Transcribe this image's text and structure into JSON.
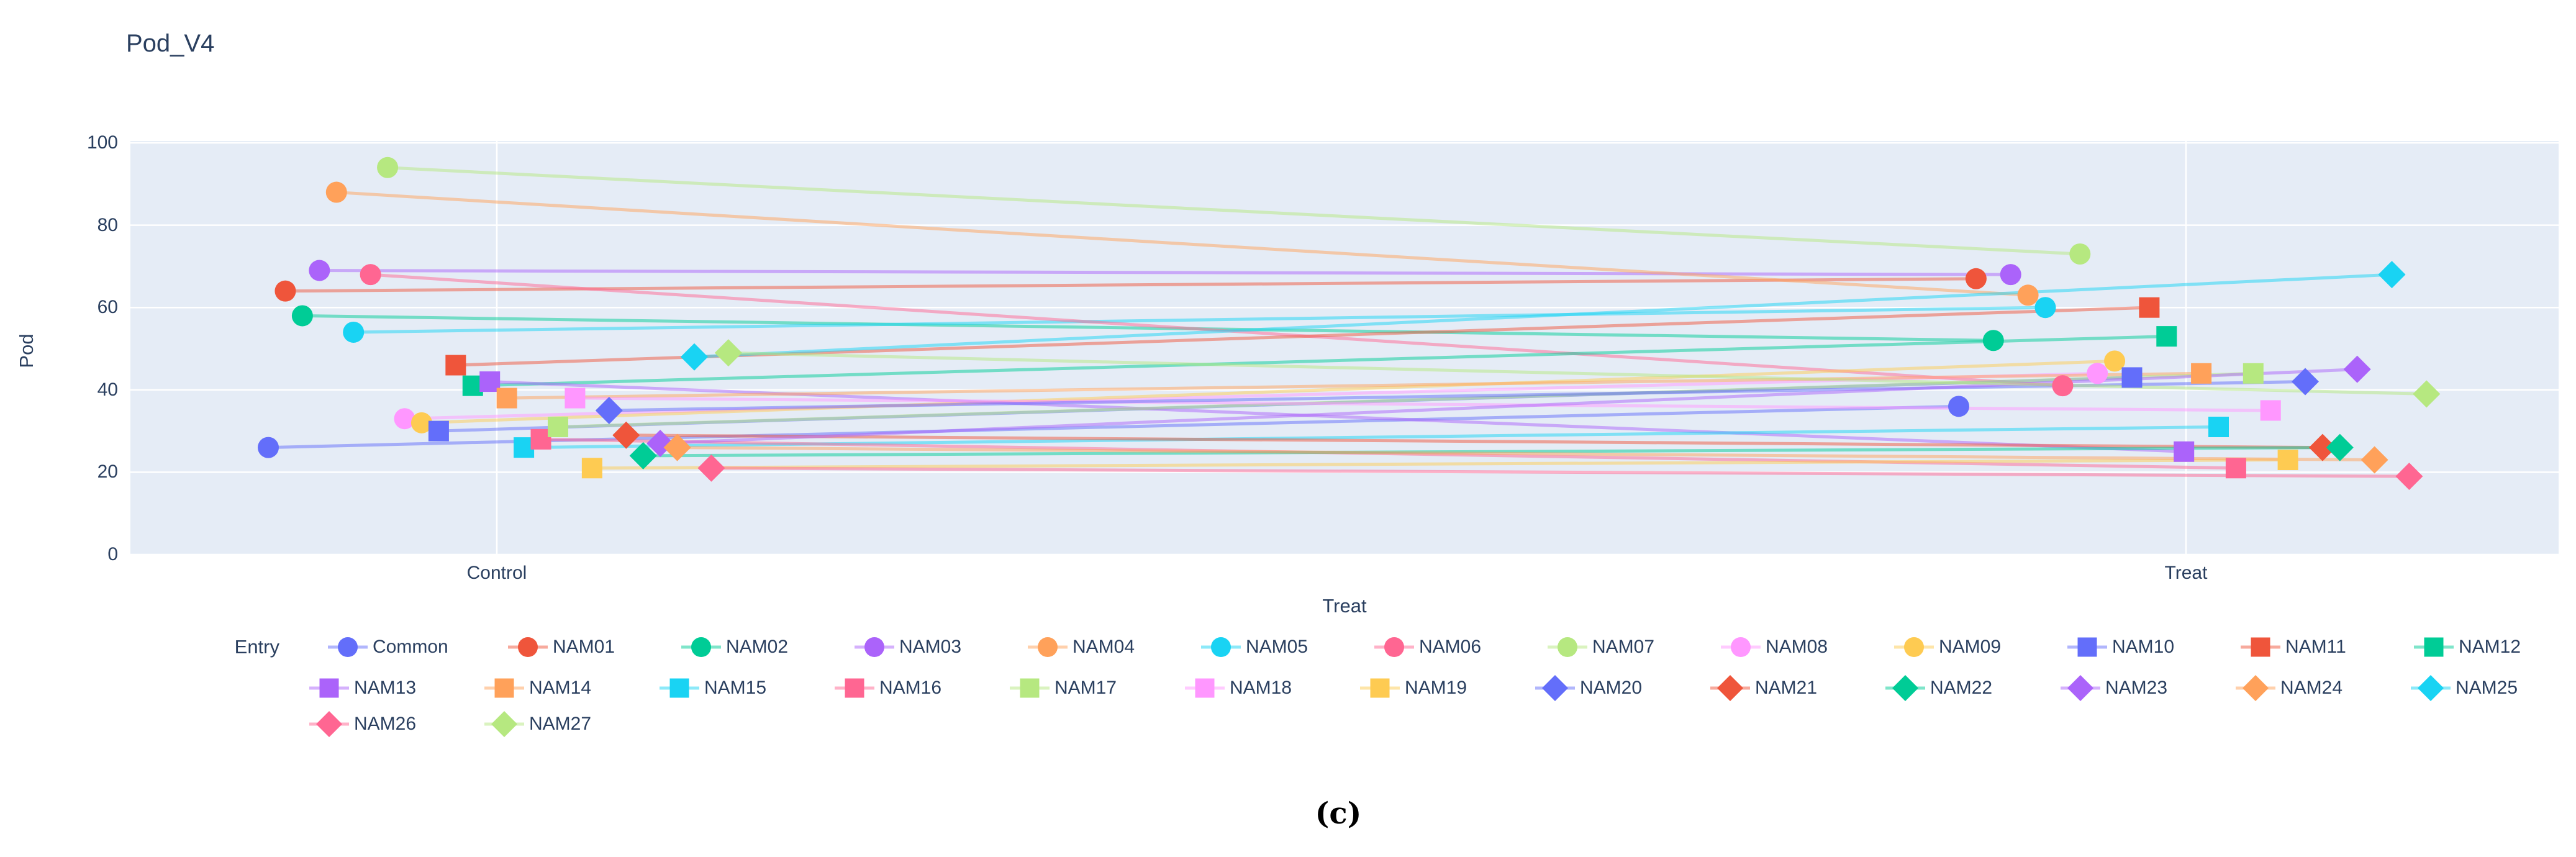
{
  "title": "Pod_V4",
  "caption": "(c)",
  "y_axis": {
    "title": "Pod",
    "ticks": [
      0,
      20,
      40,
      60,
      80,
      100
    ]
  },
  "x_axis": {
    "title": "Treat",
    "categories": [
      "Control",
      "Treat"
    ]
  },
  "legend": {
    "title": "Entry"
  },
  "colors": {
    "plot_background": "#E5ECF6",
    "gridline": "#FFFFFF",
    "text": "#2A3F5F",
    "caption_text": "#000000",
    "palette": [
      "#636EFA",
      "#EF553B",
      "#00CC96",
      "#AB63FA",
      "#FFA15A",
      "#19D3F3",
      "#FF6692",
      "#B6E880",
      "#FF97FF",
      "#FECB52"
    ]
  },
  "chart_data": {
    "type": "line",
    "subtype": "paired-dot-slope-chart",
    "title": "Pod_V4",
    "xlabel": "Treat",
    "ylabel": "Pod",
    "ylim": [
      0,
      100
    ],
    "yticks": [
      0,
      20,
      40,
      60,
      80,
      100
    ],
    "grid": true,
    "legend_position": "bottom",
    "categories": [
      "Control",
      "Treat"
    ],
    "series": [
      {
        "name": "Common",
        "symbol": "circle",
        "color": "#636EFA",
        "values": [
          26,
          36
        ]
      },
      {
        "name": "NAM01",
        "symbol": "circle",
        "color": "#EF553B",
        "values": [
          64,
          67
        ]
      },
      {
        "name": "NAM02",
        "symbol": "circle",
        "color": "#00CC96",
        "values": [
          58,
          52
        ]
      },
      {
        "name": "NAM03",
        "symbol": "circle",
        "color": "#AB63FA",
        "values": [
          69,
          68
        ]
      },
      {
        "name": "NAM04",
        "symbol": "circle",
        "color": "#FFA15A",
        "values": [
          88,
          63
        ]
      },
      {
        "name": "NAM05",
        "symbol": "circle",
        "color": "#19D3F3",
        "values": [
          54,
          60
        ]
      },
      {
        "name": "NAM06",
        "symbol": "circle",
        "color": "#FF6692",
        "values": [
          68,
          41
        ]
      },
      {
        "name": "NAM07",
        "symbol": "circle",
        "color": "#B6E880",
        "values": [
          94,
          73
        ]
      },
      {
        "name": "NAM08",
        "symbol": "circle",
        "color": "#FF97FF",
        "values": [
          33,
          44
        ]
      },
      {
        "name": "NAM09",
        "symbol": "circle",
        "color": "#FECB52",
        "values": [
          32,
          47
        ]
      },
      {
        "name": "NAM10",
        "symbol": "square",
        "color": "#636EFA",
        "values": [
          30,
          43
        ]
      },
      {
        "name": "NAM11",
        "symbol": "square",
        "color": "#EF553B",
        "values": [
          46,
          60
        ]
      },
      {
        "name": "NAM12",
        "symbol": "square",
        "color": "#00CC96",
        "values": [
          41,
          53
        ]
      },
      {
        "name": "NAM13",
        "symbol": "square",
        "color": "#AB63FA",
        "values": [
          42,
          25
        ]
      },
      {
        "name": "NAM14",
        "symbol": "square",
        "color": "#FFA15A",
        "values": [
          38,
          44
        ]
      },
      {
        "name": "NAM15",
        "symbol": "square",
        "color": "#19D3F3",
        "values": [
          26,
          31
        ]
      },
      {
        "name": "NAM16",
        "symbol": "square",
        "color": "#FF6692",
        "values": [
          28,
          21
        ]
      },
      {
        "name": "NAM17",
        "symbol": "square",
        "color": "#B6E880",
        "values": [
          31,
          44
        ]
      },
      {
        "name": "NAM18",
        "symbol": "square",
        "color": "#FF97FF",
        "values": [
          38,
          35
        ]
      },
      {
        "name": "NAM19",
        "symbol": "square",
        "color": "#FECB52",
        "values": [
          21,
          23
        ]
      },
      {
        "name": "NAM20",
        "symbol": "diamond",
        "color": "#636EFA",
        "values": [
          35,
          42
        ]
      },
      {
        "name": "NAM21",
        "symbol": "diamond",
        "color": "#EF553B",
        "values": [
          29,
          26
        ]
      },
      {
        "name": "NAM22",
        "symbol": "diamond",
        "color": "#00CC96",
        "values": [
          24,
          26
        ]
      },
      {
        "name": "NAM23",
        "symbol": "diamond",
        "color": "#AB63FA",
        "values": [
          27,
          45
        ]
      },
      {
        "name": "NAM24",
        "symbol": "diamond",
        "color": "#FFA15A",
        "values": [
          26,
          23
        ]
      },
      {
        "name": "NAM25",
        "symbol": "diamond",
        "color": "#19D3F3",
        "values": [
          48,
          68
        ]
      },
      {
        "name": "NAM26",
        "symbol": "diamond",
        "color": "#FF6692",
        "values": [
          21,
          19
        ]
      },
      {
        "name": "NAM27",
        "symbol": "diamond",
        "color": "#B6E880",
        "values": [
          49,
          39
        ]
      }
    ]
  }
}
